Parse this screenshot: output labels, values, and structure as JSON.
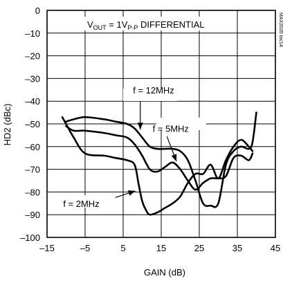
{
  "chart_data": {
    "type": "line",
    "title": "",
    "xlabel": "GAIN (dB)",
    "ylabel": "HD2 (dBc)",
    "xlim": [
      -15,
      45
    ],
    "ylim": [
      -100,
      0
    ],
    "x_ticks": [
      -15,
      -5,
      5,
      15,
      25,
      35,
      45
    ],
    "y_ticks": [
      0,
      -10,
      -20,
      -30,
      -40,
      -50,
      -60,
      -70,
      -80,
      -90,
      -100
    ],
    "x_tick_labels": [
      "-15",
      "-5",
      "5",
      "15",
      "25",
      "35",
      "45"
    ],
    "y_tick_labels": [
      "0",
      "-10",
      "-20",
      "-30",
      "-40",
      "-50",
      "-60",
      "-70",
      "-80",
      "-90",
      "-100"
    ],
    "grid": true,
    "annotations": {
      "condition": "V",
      "condition_sub": "OUT",
      "condition_mid": " = 1V",
      "condition_sub2": "P-P",
      "condition_tail": " DIFFERENTIAL",
      "watermark": "MAX2035 toc14"
    },
    "series": [
      {
        "name": "f = 12MHz",
        "x": [
          -10,
          -8,
          -5,
          0,
          3,
          6,
          8,
          10,
          12,
          14,
          16,
          18,
          20,
          22,
          24,
          26,
          28,
          30,
          32,
          34,
          36,
          38,
          39,
          40
        ],
        "y": [
          -49,
          -48,
          -47,
          -48,
          -49,
          -50,
          -52,
          -56,
          -60,
          -61,
          -61,
          -61,
          -62,
          -66,
          -75,
          -85,
          -86,
          -85,
          -68,
          -62,
          -60,
          -61,
          -58,
          -45
        ]
      },
      {
        "name": "f = 5MHz",
        "x": [
          -10,
          -8,
          -5,
          0,
          3,
          6,
          8,
          10,
          12,
          14,
          16,
          18,
          20,
          22,
          24,
          26,
          28,
          30,
          32,
          34,
          36,
          38,
          39
        ],
        "y": [
          -51,
          -53,
          -53,
          -54,
          -55,
          -56,
          -59,
          -64,
          -70,
          -71,
          -69,
          -67,
          -70,
          -75,
          -79,
          -76,
          -74,
          -74,
          -73,
          -65,
          -64,
          -66,
          -63
        ]
      },
      {
        "name": "f = 2MHz",
        "x": [
          -11,
          -8,
          -5,
          0,
          3,
          6,
          8,
          9,
          10,
          11,
          12,
          14,
          16,
          18,
          20,
          22,
          24,
          26,
          28,
          30,
          32,
          34,
          36,
          38,
          39
        ],
        "y": [
          -47,
          -56,
          -63,
          -64,
          -65,
          -66,
          -68,
          -76,
          -84,
          -88,
          -90,
          -89,
          -87,
          -85,
          -82,
          -76,
          -72,
          -72,
          -68,
          -74,
          -66,
          -60,
          -57,
          -60,
          -62
        ]
      }
    ],
    "series_labels": [
      {
        "text": "f = 12MHz",
        "x": 13,
        "y": -35
      },
      {
        "text": "f = 5MHz",
        "x": 17.5,
        "y": -52
      },
      {
        "text": "f = 2MHz",
        "x": -6,
        "y": -85
      }
    ]
  }
}
